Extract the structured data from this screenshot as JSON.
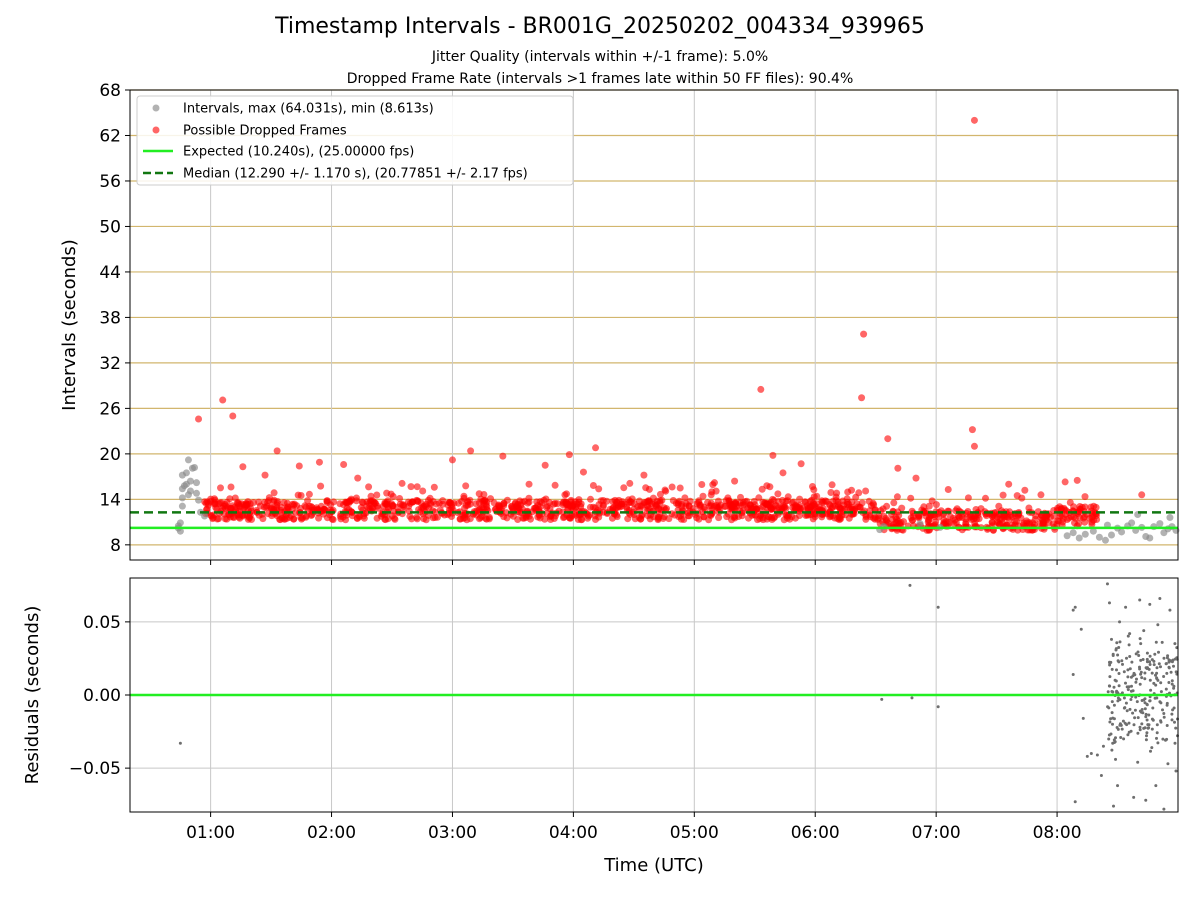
{
  "title": "Timestamp Intervals - BR001G_20250202_004334_939965",
  "subtitle1": "Jitter Quality (intervals within +/-1 frame): 5.0%",
  "subtitle2": "Dropped Frame Rate (intervals >1 frames late within 50 FF files): 90.4%",
  "colors": {
    "intervals": "#888888",
    "dropped": "#ff0000",
    "expected": "#22ee22",
    "median": "#117711",
    "hgrid": "#d2b66e",
    "vgrid": "#c8c8c8",
    "residuals": "#6e6e6e"
  },
  "chart_data": [
    {
      "type": "scatter",
      "xlabel": "",
      "ylabel": "Intervals (seconds)",
      "xlim": [
        "00:20",
        "09:00"
      ],
      "ylim": [
        6,
        68
      ],
      "yticks": [
        8,
        14,
        20,
        26,
        32,
        38,
        44,
        50,
        56,
        62,
        68
      ],
      "xticks": [
        "01:00",
        "02:00",
        "03:00",
        "04:00",
        "05:00",
        "06:00",
        "07:00",
        "08:00"
      ],
      "grid": true,
      "legend_position": "top-left",
      "legend": [
        "Intervals, max (64.031s), min (8.613s)",
        "Possible Dropped Frames",
        "Expected (10.240s), (25.00000 fps)",
        "Median (12.290 +/- 1.170 s), (20.77851 +/- 2.17 fps)"
      ],
      "lines": [
        {
          "name": "Expected (10.240s), (25.00000 fps)",
          "y": 10.24,
          "style": "solid"
        },
        {
          "name": "Median (12.290 +/- 1.170 s), (20.77851 +/- 2.17 fps)",
          "y": 12.29,
          "style": "dashed"
        }
      ],
      "series": [
        {
          "name": "Intervals, max (64.031s), min (8.613s)",
          "points": [
            [
              "00:44",
              10.5
            ],
            [
              "00:44",
              10.2
            ],
            [
              "00:45",
              9.8
            ],
            [
              "00:45",
              10.9
            ],
            [
              "00:46",
              13.1
            ],
            [
              "00:46",
              14.2
            ],
            [
              "00:46",
              15.4
            ],
            [
              "00:46",
              17.2
            ],
            [
              "00:47",
              15.8
            ],
            [
              "00:48",
              16.0
            ],
            [
              "00:48",
              17.5
            ],
            [
              "00:49",
              14.6
            ],
            [
              "00:49",
              19.2
            ],
            [
              "00:50",
              15.1
            ],
            [
              "00:50",
              16.4
            ],
            [
              "00:51",
              18.1
            ],
            [
              "00:52",
              18.2
            ],
            [
              "00:53",
              14.8
            ],
            [
              "00:53",
              16.2
            ],
            [
              "00:54",
              13.9
            ],
            [
              "00:55",
              12.3
            ],
            [
              "00:57",
              11.8
            ],
            [
              "06:32",
              10.0
            ],
            [
              "06:34",
              10.4
            ],
            [
              "06:52",
              10.8
            ],
            [
              "07:02",
              10.3
            ],
            [
              "08:05",
              9.2
            ],
            [
              "08:08",
              9.6
            ],
            [
              "08:11",
              8.9
            ],
            [
              "08:14",
              9.4
            ],
            [
              "08:18",
              9.8
            ],
            [
              "08:21",
              9.0
            ],
            [
              "08:24",
              8.6
            ],
            [
              "08:25",
              10.6
            ],
            [
              "08:27",
              9.3
            ],
            [
              "08:30",
              10.2
            ],
            [
              "08:32",
              9.7
            ],
            [
              "08:35",
              10.5
            ],
            [
              "08:37",
              10.9
            ],
            [
              "08:39",
              9.9
            ],
            [
              "08:42",
              10.3
            ],
            [
              "08:44",
              9.1
            ],
            [
              "08:46",
              8.9
            ],
            [
              "08:48",
              10.4
            ],
            [
              "08:51",
              10.8
            ],
            [
              "08:53",
              9.6
            ],
            [
              "08:55",
              10.1
            ],
            [
              "08:57",
              10.4
            ],
            [
              "08:59",
              9.9
            ],
            [
              "08:40",
              12.0
            ],
            [
              "08:56",
              11.6
            ]
          ]
        },
        {
          "name": "Possible Dropped Frames",
          "points": [
            [
              "00:54",
              24.6
            ],
            [
              "01:06",
              27.1
            ],
            [
              "01:11",
              25.0
            ],
            [
              "01:16",
              18.3
            ],
            [
              "01:27",
              17.2
            ],
            [
              "01:33",
              20.4
            ],
            [
              "01:44",
              18.4
            ],
            [
              "01:54",
              18.9
            ],
            [
              "02:06",
              18.6
            ],
            [
              "02:13",
              16.8
            ],
            [
              "02:35",
              16.1
            ],
            [
              "02:51",
              15.6
            ],
            [
              "03:00",
              19.2
            ],
            [
              "03:09",
              20.4
            ],
            [
              "03:25",
              19.7
            ],
            [
              "03:38",
              16.0
            ],
            [
              "03:46",
              18.5
            ],
            [
              "03:58",
              19.9
            ],
            [
              "04:05",
              17.6
            ],
            [
              "04:11",
              20.8
            ],
            [
              "04:28",
              16.1
            ],
            [
              "04:35",
              17.2
            ],
            [
              "04:53",
              15.5
            ],
            [
              "05:10",
              16.2
            ],
            [
              "05:20",
              16.4
            ],
            [
              "05:33",
              28.5
            ],
            [
              "05:36",
              15.8
            ],
            [
              "05:39",
              19.8
            ],
            [
              "05:44",
              17.5
            ],
            [
              "05:53",
              18.7
            ],
            [
              "06:18",
              15.2
            ],
            [
              "06:23",
              27.4
            ],
            [
              "06:24",
              35.8
            ],
            [
              "06:25",
              15.1
            ],
            [
              "06:36",
              22.0
            ],
            [
              "06:41",
              18.1
            ],
            [
              "06:50",
              16.8
            ],
            [
              "06:58",
              13.8
            ],
            [
              "07:06",
              15.3
            ],
            [
              "07:16",
              14.2
            ],
            [
              "07:18",
              23.2
            ],
            [
              "07:19",
              21.0
            ],
            [
              "07:19",
              64.0
            ],
            [
              "07:36",
              16.0
            ],
            [
              "07:44",
              15.2
            ],
            [
              "07:52",
              14.6
            ],
            [
              "08:04",
              16.3
            ],
            [
              "08:10",
              16.5
            ],
            [
              "08:42",
              14.6
            ]
          ],
          "band": {
            "y_values": [
              10.9,
              11.5,
              12.0,
              12.5,
              13.0,
              13.5,
              14.1
            ]
          }
        }
      ]
    },
    {
      "type": "scatter",
      "xlabel": "Time (UTC)",
      "ylabel": "Residuals (seconds)",
      "xlim": [
        "00:20",
        "09:00"
      ],
      "ylim": [
        -0.08,
        0.08
      ],
      "yticks": [
        "0.05",
        "0.00",
        "−0.05"
      ],
      "xticks": [
        "01:00",
        "02:00",
        "03:00",
        "04:00",
        "05:00",
        "06:00",
        "07:00",
        "08:00"
      ],
      "grid": true,
      "reference_line": {
        "y": 0.0
      },
      "series": [
        {
          "name": "",
          "points": [
            [
              "00:45",
              -0.033
            ],
            [
              "06:33",
              -0.003
            ],
            [
              "06:48",
              -0.002
            ],
            [
              "06:47",
              0.075
            ],
            [
              "07:01",
              0.06
            ],
            [
              "07:01",
              -0.008
            ],
            [
              "08:08",
              0.058
            ],
            [
              "08:09",
              0.06
            ],
            [
              "08:08",
              0.014
            ],
            [
              "08:09",
              -0.073
            ],
            [
              "08:12",
              0.045
            ],
            [
              "08:13",
              -0.016
            ],
            [
              "08:15",
              -0.042
            ],
            [
              "08:17",
              -0.04
            ],
            [
              "08:20",
              -0.041
            ],
            [
              "08:22",
              -0.055
            ],
            [
              "08:23",
              -0.035
            ],
            [
              "08:25",
              0.076
            ],
            [
              "08:26",
              0.063
            ],
            [
              "08:28",
              -0.076
            ],
            [
              "08:30",
              -0.062
            ],
            [
              "08:34",
              0.06
            ],
            [
              "08:38",
              -0.07
            ],
            [
              "08:41",
              0.065
            ],
            [
              "08:44",
              -0.072
            ],
            [
              "08:46",
              0.062
            ],
            [
              "08:49",
              -0.062
            ],
            [
              "08:51",
              0.066
            ],
            [
              "08:53",
              -0.078
            ],
            [
              "08:56",
              0.058
            ],
            [
              "08:59",
              -0.052
            ],
            [
              "08:27",
              0.038
            ],
            [
              "08:29",
              -0.044
            ],
            [
              "08:31",
              0.05
            ],
            [
              "08:33",
              -0.03
            ],
            [
              "08:36",
              0.042
            ],
            [
              "08:40",
              -0.046
            ],
            [
              "08:43",
              0.044
            ],
            [
              "08:47",
              -0.036
            ],
            [
              "08:50",
              0.048
            ],
            [
              "08:55",
              -0.047
            ]
          ],
          "cluster": {
            "from": "08:25",
            "to": "09:00",
            "spread": 0.04
          }
        }
      ]
    }
  ]
}
